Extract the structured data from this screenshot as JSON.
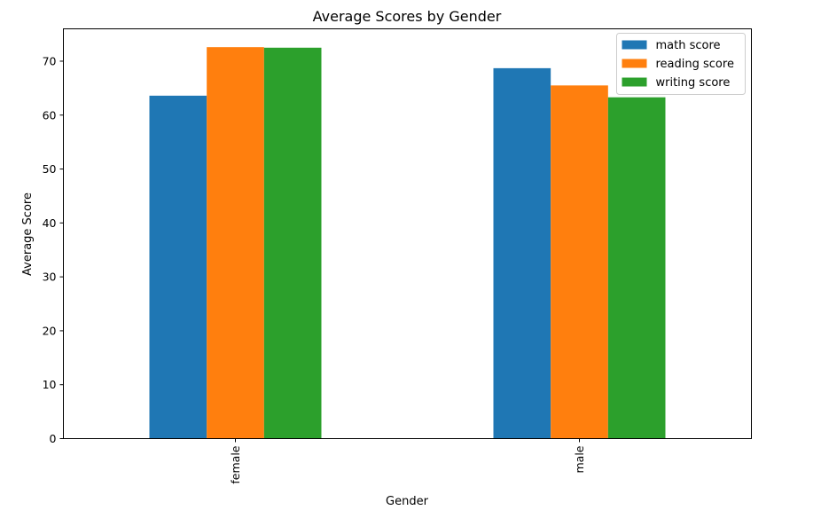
{
  "chart_data": {
    "type": "bar",
    "title": "Average Scores by Gender",
    "xlabel": "Gender",
    "ylabel": "Average Score",
    "categories": [
      "female",
      "male"
    ],
    "series": [
      {
        "name": "math score",
        "color": "#1f77b4",
        "values": [
          63.6,
          68.7
        ]
      },
      {
        "name": "reading score",
        "color": "#ff7f0e",
        "values": [
          72.6,
          65.5
        ]
      },
      {
        "name": "writing score",
        "color": "#2ca02c",
        "values": [
          72.5,
          63.3
        ]
      }
    ],
    "ylim": [
      0,
      76
    ],
    "yticks": [
      0,
      10,
      20,
      30,
      40,
      50,
      60,
      70
    ],
    "xtick_rotation": "vertical",
    "grid": false,
    "legend_position": "upper right"
  }
}
